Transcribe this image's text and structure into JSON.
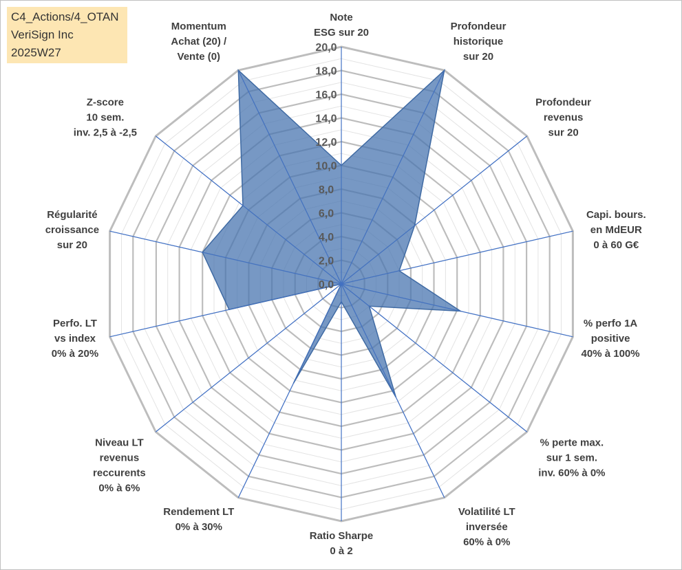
{
  "header": {
    "lines": [
      "C4_Actions/4_OTAN",
      "VeriSign Inc",
      "2025W27"
    ]
  },
  "chart_data": {
    "type": "radar",
    "title": "",
    "rmin": 0,
    "rmax": 20,
    "grid": true,
    "tick_labels": [
      "0,0",
      "2,0",
      "4,0",
      "6,0",
      "8,0",
      "10,0",
      "12,0",
      "14,0",
      "16,0",
      "18,0",
      "20,0"
    ],
    "categories": [
      [
        "Note",
        "ESG sur 20"
      ],
      [
        "Profondeur",
        "historique",
        "sur 20"
      ],
      [
        "Profondeur",
        "revenus",
        "sur 20"
      ],
      [
        "Capi. bours.",
        "en MdEUR",
        "0 à 60 G€"
      ],
      [
        "% perfo 1A",
        "positive",
        "40% à 100%"
      ],
      [
        "% perte max.",
        "sur 1 sem.",
        "inv. 60% à 0%"
      ],
      [
        "Volatilité LT",
        "inversée",
        "60% à 0%"
      ],
      [
        "Ratio Sharpe",
        "0 à 2"
      ],
      [
        "Rendement LT",
        "0% à 30%"
      ],
      [
        "Niveau LT",
        "revenus",
        "reccurents",
        "0% à 6%"
      ],
      [
        "Perfo. LT",
        "vs index",
        "0% à 20%"
      ],
      [
        "Régularité",
        "croissance",
        "sur 20"
      ],
      [
        "Z-score",
        "10 sem.",
        "inv. 2,5 à -2,5"
      ],
      [
        "Momentum",
        "Achat (20) /",
        "Vente (0)"
      ]
    ],
    "series": [
      {
        "values": [
          10,
          20,
          7.9,
          5,
          10.3,
          3,
          10.6,
          1.5,
          9.3,
          0,
          9.7,
          12,
          10.6,
          20
        ],
        "color": "#4a76b0"
      }
    ]
  }
}
